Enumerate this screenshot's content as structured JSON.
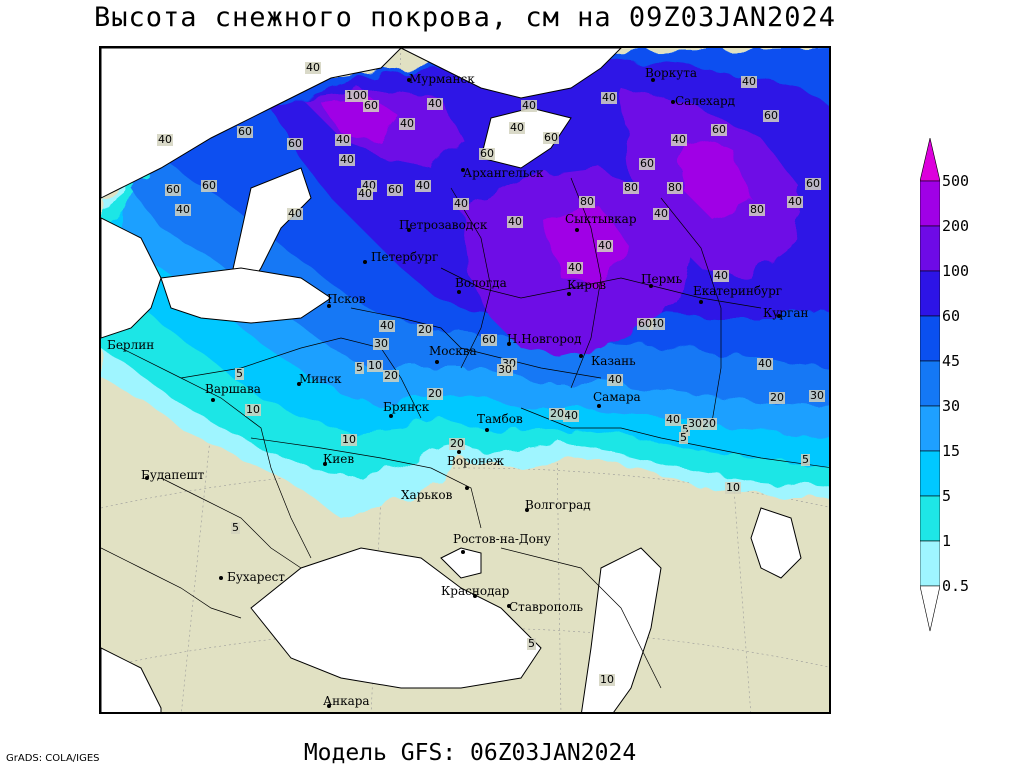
{
  "title": "Высота снежного покрова, см на 09Z03JAN2024",
  "subtitle": "Модель GFS: 06Z03JAN2024",
  "credit": "GrADS: COLA/IGES",
  "colors": {
    "land": "#e1e1c3",
    "sea": "#ffffff",
    "c05": "#9ff5ff",
    "c1": "#1ee6e6",
    "c5": "#00c8ff",
    "c15": "#1ea0ff",
    "c30": "#1478f5",
    "c45": "#0a50f0",
    "c60": "#2d14e6",
    "c100": "#6e0ae6",
    "c200": "#a000e6",
    "c500": "#dc00dc"
  },
  "legend": {
    "labels": [
      "500",
      "200",
      "100",
      "60",
      "45",
      "30",
      "15",
      "5",
      "1",
      "0.5"
    ]
  },
  "cities": [
    {
      "name": "Мурманск"
    },
    {
      "name": "Воркута"
    },
    {
      "name": "Салехард"
    },
    {
      "name": "Архангельск"
    },
    {
      "name": "Петрозаводск"
    },
    {
      "name": "Сыктывкар"
    },
    {
      "name": "Петербург"
    },
    {
      "name": "Вологда"
    },
    {
      "name": "Киров"
    },
    {
      "name": "Пермь"
    },
    {
      "name": "Екатеринбург"
    },
    {
      "name": "Курган"
    },
    {
      "name": "Псков"
    },
    {
      "name": "Н.Новгород"
    },
    {
      "name": "Москва"
    },
    {
      "name": "Казань"
    },
    {
      "name": "Берлин"
    },
    {
      "name": "Минск"
    },
    {
      "name": "Варшава"
    },
    {
      "name": "Брянск"
    },
    {
      "name": "Самара"
    },
    {
      "name": "Тамбов"
    },
    {
      "name": "Воронеж"
    },
    {
      "name": "Киев"
    },
    {
      "name": "Будапешт"
    },
    {
      "name": "Харьков"
    },
    {
      "name": "Волгоград"
    },
    {
      "name": "Ростов-на-Дону"
    },
    {
      "name": "Бухарест"
    },
    {
      "name": "Краснодар"
    },
    {
      "name": "Ставрополь"
    },
    {
      "name": "Анкара"
    }
  ],
  "values": [
    {
      "v": "40"
    },
    {
      "v": "100"
    },
    {
      "v": "60"
    },
    {
      "v": "40"
    },
    {
      "v": "40"
    },
    {
      "v": "60"
    },
    {
      "v": "40"
    },
    {
      "v": "40"
    },
    {
      "v": "60"
    },
    {
      "v": "40"
    },
    {
      "v": "60"
    },
    {
      "v": "60"
    },
    {
      "v": "40"
    },
    {
      "v": "40"
    },
    {
      "v": "60"
    },
    {
      "v": "40"
    },
    {
      "v": "40"
    },
    {
      "v": "40"
    },
    {
      "v": "40"
    },
    {
      "v": "60"
    },
    {
      "v": "40"
    },
    {
      "v": "40"
    },
    {
      "v": "60"
    },
    {
      "v": "40"
    },
    {
      "v": "60"
    },
    {
      "v": "80"
    },
    {
      "v": "80"
    },
    {
      "v": "80"
    },
    {
      "v": "40"
    },
    {
      "v": "60"
    },
    {
      "v": "60"
    },
    {
      "v": "40"
    },
    {
      "v": "80"
    },
    {
      "v": "60"
    },
    {
      "v": "40"
    },
    {
      "v": "40"
    },
    {
      "v": "40"
    },
    {
      "v": "40"
    },
    {
      "v": "40"
    },
    {
      "v": "40"
    },
    {
      "v": "20"
    },
    {
      "v": "60"
    },
    {
      "v": "40"
    },
    {
      "v": "60"
    },
    {
      "v": "30"
    },
    {
      "v": "20"
    },
    {
      "v": "30"
    },
    {
      "v": "40"
    },
    {
      "v": "5"
    },
    {
      "v": "10"
    },
    {
      "v": "20"
    },
    {
      "v": "40"
    },
    {
      "v": "20"
    },
    {
      "v": "30"
    },
    {
      "v": "5"
    },
    {
      "v": "10"
    },
    {
      "v": "5"
    },
    {
      "v": "10"
    },
    {
      "v": "20"
    },
    {
      "v": "5"
    },
    {
      "v": "40"
    },
    {
      "v": "20"
    },
    {
      "v": "40"
    },
    {
      "v": "30"
    },
    {
      "v": "20"
    },
    {
      "v": "30"
    },
    {
      "v": "5"
    },
    {
      "v": "5"
    },
    {
      "v": "10"
    },
    {
      "v": "5"
    },
    {
      "v": "10"
    },
    {
      "v": "40"
    }
  ]
}
